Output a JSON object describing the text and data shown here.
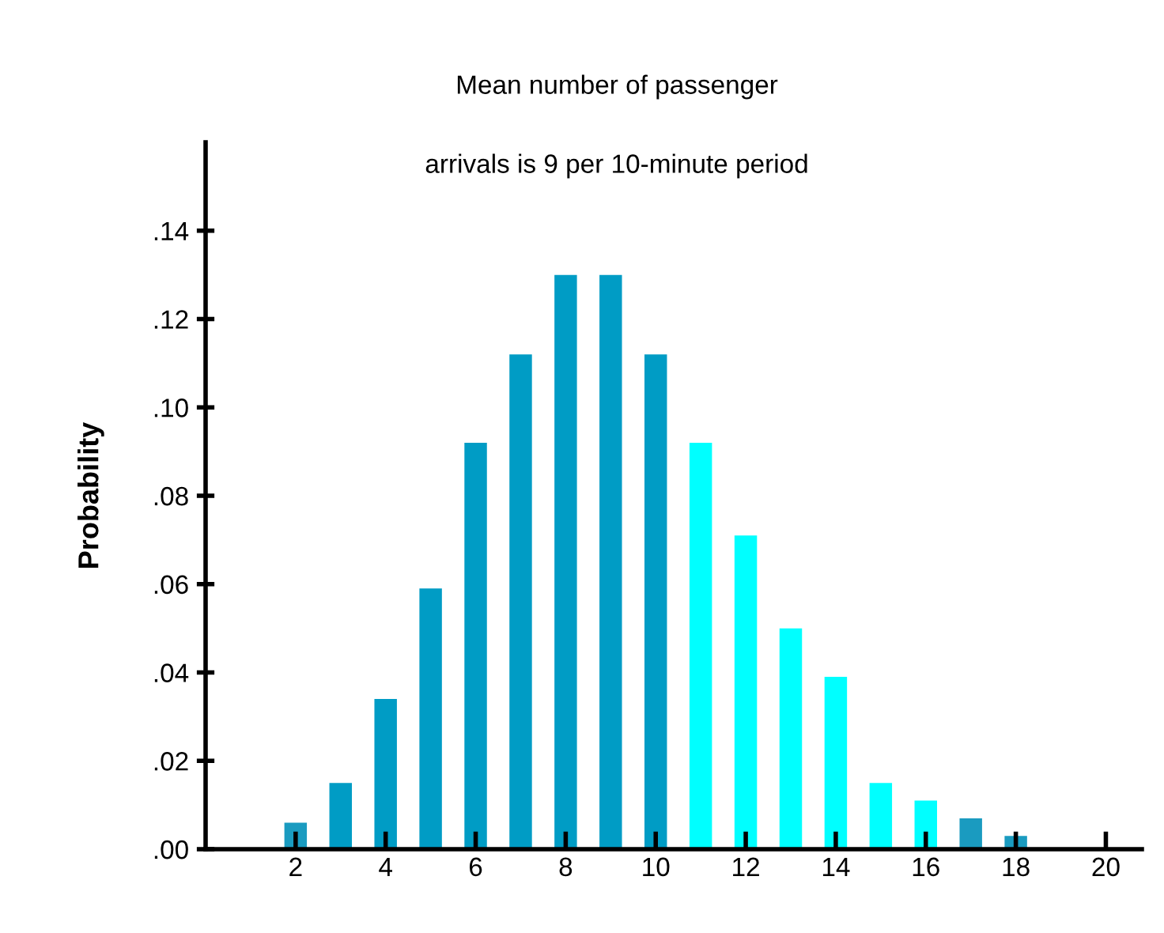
{
  "chart_data": {
    "type": "bar",
    "title": "Mean number of passenger",
    "subtitle": "arrivals is 9 per 10-minute period",
    "ylabel": "Probability",
    "x": [
      2,
      3,
      4,
      5,
      6,
      7,
      8,
      9,
      10,
      11,
      12,
      13,
      14,
      15,
      16,
      17,
      18
    ],
    "values": [
      0.006,
      0.015,
      0.034,
      0.059,
      0.092,
      0.112,
      0.13,
      0.13,
      0.112,
      0.092,
      0.071,
      0.05,
      0.039,
      0.015,
      0.011,
      0.007,
      0.003
    ],
    "colors": [
      "#1a9bc0",
      "#009cc5",
      "#009cc5",
      "#009cc5",
      "#009cc5",
      "#009cc5",
      "#009cc5",
      "#009cc5",
      "#009cc5",
      "#00ffff",
      "#00ffff",
      "#00ffff",
      "#00ffff",
      "#00ffff",
      "#00ffff",
      "#1a9bc0",
      "#1a9bc0"
    ],
    "xlim": [
      0,
      20.8
    ],
    "xticks": [
      2,
      4,
      6,
      8,
      10,
      12,
      14,
      16,
      18,
      20
    ],
    "ylim": [
      0,
      0.16
    ],
    "yticks": [
      {
        "value": 0,
        "label": ".00"
      },
      {
        "value": 0.02,
        "label": ".02"
      },
      {
        "value": 0.04,
        "label": ".04"
      },
      {
        "value": 0.06,
        "label": ".06"
      },
      {
        "value": 0.08,
        "label": ".08"
      },
      {
        "value": 0.1,
        "label": ".10"
      },
      {
        "value": 0.12,
        "label": ".12"
      },
      {
        "value": 0.14,
        "label": ".14"
      }
    ],
    "grid": false
  }
}
